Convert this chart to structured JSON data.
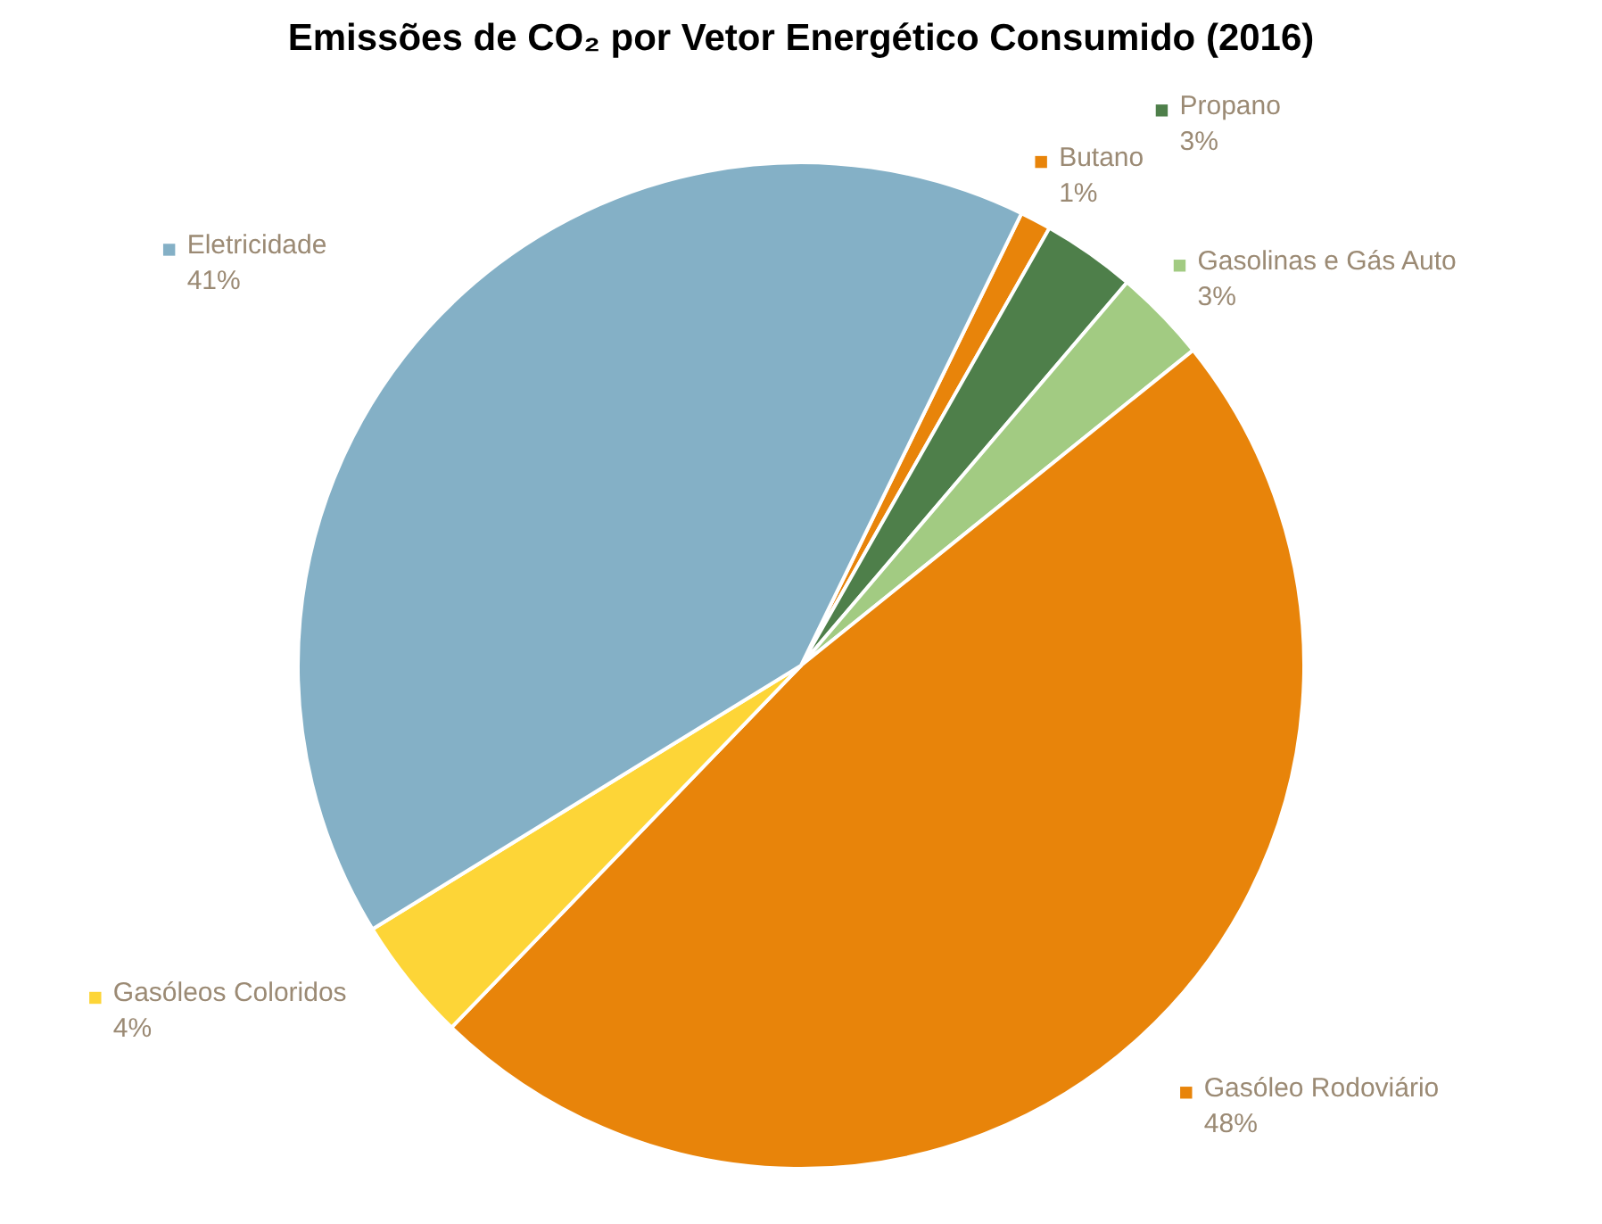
{
  "chart_data": {
    "type": "pie",
    "title": "Emissões de CO₂ por Vetor Energético Consumido (2016)",
    "categories": [
      "Butano",
      "Propano",
      "Gasolinas e Gás Auto",
      "Gasóleo Rodoviário",
      "Gasóleos Coloridos",
      "Eletricidade"
    ],
    "values": [
      1,
      3,
      3,
      48,
      4,
      41
    ],
    "value_labels": [
      "1%",
      "3%",
      "3%",
      "48%",
      "4%",
      "41%"
    ],
    "colors": [
      "#e8840a",
      "#4e7f4a",
      "#a2cb82",
      "#e8840a",
      "#fdd537",
      "#84b0c6"
    ],
    "legend": "right"
  }
}
